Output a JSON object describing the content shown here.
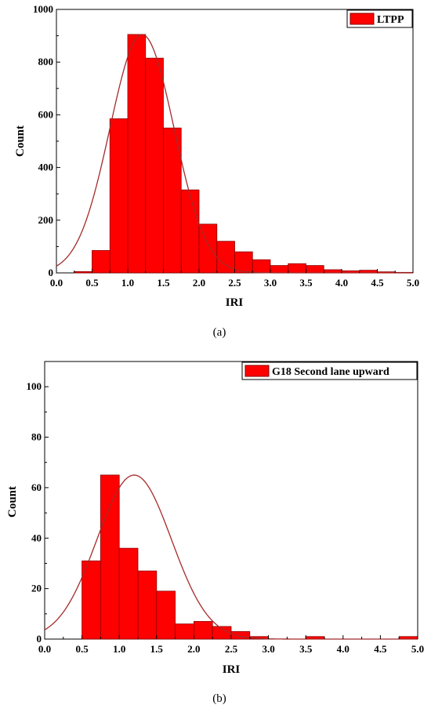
{
  "chart_data": [
    {
      "type": "bar",
      "subtype": "histogram-with-normal-fit",
      "caption": "(a)",
      "xlabel": "IRI",
      "ylabel": "Count",
      "xlim": [
        0.0,
        5.0
      ],
      "ylim": [
        0,
        1000
      ],
      "xticks": [
        "0.0",
        "0.5",
        "1.0",
        "1.5",
        "2.0",
        "2.5",
        "3.0",
        "3.5",
        "4.0",
        "4.5",
        "5.0"
      ],
      "yticks": [
        "0",
        "200",
        "400",
        "600",
        "800",
        "1000"
      ],
      "bin_width": 0.25,
      "bin_starts": [
        0.25,
        0.5,
        0.75,
        1.0,
        1.25,
        1.5,
        1.75,
        2.0,
        2.25,
        2.5,
        2.75,
        3.0,
        3.25,
        3.5,
        3.75,
        4.0,
        4.25,
        4.5,
        4.75
      ],
      "values": [
        5,
        85,
        585,
        905,
        815,
        550,
        315,
        185,
        120,
        80,
        50,
        28,
        35,
        28,
        12,
        8,
        10,
        4,
        2
      ],
      "fit_peak_x": 1.2,
      "fit_peak_y": 905,
      "fit_sigma": 0.45,
      "legend": {
        "label": "LTPP",
        "position": "top-right"
      },
      "bar_color": "#ff0000",
      "fit_color": "#a52a2a",
      "grid": false
    },
    {
      "type": "bar",
      "subtype": "histogram-with-normal-fit",
      "caption": "(b)",
      "xlabel": "IRI",
      "ylabel": "Count",
      "xlim": [
        0.0,
        5.0
      ],
      "ylim": [
        0,
        110
      ],
      "xticks": [
        "0.0",
        "0.5",
        "1.0",
        "1.5",
        "2.0",
        "2.5",
        "3.0",
        "3.5",
        "4.0",
        "4.5",
        "5.0"
      ],
      "yticks": [
        "0",
        "20",
        "40",
        "60",
        "80",
        "100"
      ],
      "bin_width": 0.25,
      "bin_starts": [
        0.5,
        0.75,
        1.0,
        1.25,
        1.5,
        1.75,
        2.0,
        2.25,
        2.5,
        2.75,
        3.0,
        3.25,
        3.5,
        3.75,
        4.0,
        4.25,
        4.5,
        4.75
      ],
      "values": [
        31,
        65,
        36,
        27,
        19,
        6,
        7,
        5,
        3,
        1,
        0,
        0,
        1,
        0,
        0,
        0,
        0,
        1
      ],
      "fit_peak_x": 1.2,
      "fit_peak_y": 65,
      "fit_sigma": 0.5,
      "legend": {
        "label": "G18 Second lane upward",
        "position": "top-right"
      },
      "bar_color": "#ff0000",
      "fit_color": "#a52a2a",
      "grid": false
    }
  ]
}
